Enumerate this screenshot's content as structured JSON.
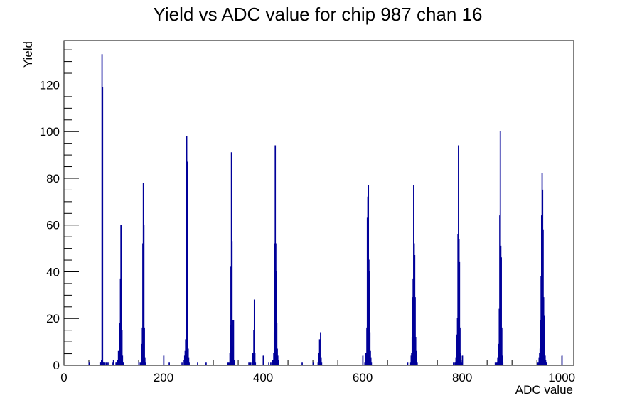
{
  "chart_data": {
    "type": "histogram",
    "title": "Yield vs ADC value for chip 987 chan 16",
    "xlabel": "ADC value",
    "ylabel": "Yield",
    "xlim": [
      0,
      1024
    ],
    "ylim": [
      0,
      139
    ],
    "x_ticks": [
      0,
      200,
      400,
      600,
      800,
      1000
    ],
    "x_tick_labels": [
      "0",
      "200",
      "400",
      "600",
      "800",
      "1000"
    ],
    "y_ticks": [
      0,
      20,
      40,
      60,
      80,
      100,
      120
    ],
    "y_tick_labels": [
      "0",
      "20",
      "40",
      "60",
      "80",
      "100",
      "120"
    ],
    "line_color": "#000099",
    "bin_width": 1,
    "bins": [
      [
        50,
        1
      ],
      [
        72,
        1
      ],
      [
        73,
        1
      ],
      [
        74,
        1
      ],
      [
        75,
        2
      ],
      [
        76,
        133
      ],
      [
        77,
        119
      ],
      [
        78,
        1
      ],
      [
        79,
        1
      ],
      [
        80,
        1
      ],
      [
        84,
        1
      ],
      [
        88,
        1
      ],
      [
        98,
        1
      ],
      [
        99,
        2
      ],
      [
        104,
        1
      ],
      [
        105,
        1
      ],
      [
        107,
        2
      ],
      [
        109,
        6
      ],
      [
        110,
        1
      ],
      [
        111,
        3
      ],
      [
        112,
        18
      ],
      [
        113,
        37
      ],
      [
        114,
        60
      ],
      [
        115,
        38
      ],
      [
        116,
        15
      ],
      [
        117,
        4
      ],
      [
        118,
        1
      ],
      [
        119,
        1
      ],
      [
        150,
        1
      ],
      [
        153,
        1
      ],
      [
        155,
        3
      ],
      [
        156,
        9
      ],
      [
        157,
        16
      ],
      [
        158,
        52
      ],
      [
        159,
        78
      ],
      [
        160,
        60
      ],
      [
        161,
        16
      ],
      [
        162,
        3
      ],
      [
        163,
        1
      ],
      [
        200,
        4
      ],
      [
        211,
        1
      ],
      [
        235,
        1
      ],
      [
        238,
        1
      ],
      [
        241,
        2
      ],
      [
        242,
        4
      ],
      [
        243,
        6
      ],
      [
        244,
        11
      ],
      [
        245,
        37
      ],
      [
        246,
        98
      ],
      [
        247,
        87
      ],
      [
        248,
        33
      ],
      [
        249,
        7
      ],
      [
        250,
        3
      ],
      [
        251,
        1
      ],
      [
        268,
        1
      ],
      [
        285,
        1
      ],
      [
        329,
        1
      ],
      [
        331,
        1
      ],
      [
        333,
        5
      ],
      [
        334,
        17
      ],
      [
        335,
        42
      ],
      [
        336,
        91
      ],
      [
        337,
        53
      ],
      [
        338,
        19
      ],
      [
        339,
        8
      ],
      [
        340,
        19
      ],
      [
        341,
        2
      ],
      [
        342,
        1
      ],
      [
        371,
        1
      ],
      [
        374,
        1
      ],
      [
        377,
        1
      ],
      [
        378,
        5
      ],
      [
        379,
        4
      ],
      [
        380,
        5
      ],
      [
        381,
        15
      ],
      [
        382,
        28
      ],
      [
        383,
        5
      ],
      [
        384,
        1
      ],
      [
        400,
        4
      ],
      [
        411,
        1
      ],
      [
        415,
        1
      ],
      [
        419,
        2
      ],
      [
        421,
        5
      ],
      [
        422,
        14
      ],
      [
        423,
        52
      ],
      [
        424,
        94
      ],
      [
        425,
        52
      ],
      [
        426,
        40
      ],
      [
        427,
        18
      ],
      [
        428,
        7
      ],
      [
        429,
        4
      ],
      [
        430,
        2
      ],
      [
        431,
        1
      ],
      [
        478,
        1
      ],
      [
        500,
        1
      ],
      [
        510,
        1
      ],
      [
        511,
        1
      ],
      [
        512,
        5
      ],
      [
        513,
        11
      ],
      [
        514,
        2
      ],
      [
        515,
        14
      ],
      [
        516,
        3
      ],
      [
        517,
        1
      ],
      [
        600,
        4
      ],
      [
        604,
        1
      ],
      [
        605,
        2
      ],
      [
        606,
        5
      ],
      [
        607,
        4
      ],
      [
        608,
        16
      ],
      [
        609,
        63
      ],
      [
        610,
        72
      ],
      [
        611,
        77
      ],
      [
        612,
        45
      ],
      [
        613,
        40
      ],
      [
        614,
        14
      ],
      [
        615,
        6
      ],
      [
        616,
        3
      ],
      [
        617,
        1
      ],
      [
        690,
        1
      ],
      [
        696,
        1
      ],
      [
        697,
        4
      ],
      [
        698,
        5
      ],
      [
        699,
        12
      ],
      [
        700,
        29
      ],
      [
        701,
        37
      ],
      [
        702,
        77
      ],
      [
        703,
        52
      ],
      [
        704,
        47
      ],
      [
        705,
        29
      ],
      [
        706,
        12
      ],
      [
        707,
        6
      ],
      [
        708,
        3
      ],
      [
        709,
        1
      ],
      [
        782,
        1
      ],
      [
        785,
        1
      ],
      [
        786,
        1
      ],
      [
        787,
        3
      ],
      [
        788,
        4
      ],
      [
        789,
        13
      ],
      [
        790,
        20
      ],
      [
        791,
        56
      ],
      [
        792,
        94
      ],
      [
        793,
        54
      ],
      [
        794,
        44
      ],
      [
        795,
        16
      ],
      [
        796,
        5
      ],
      [
        797,
        2
      ],
      [
        798,
        1
      ],
      [
        800,
        4
      ],
      [
        866,
        1
      ],
      [
        869,
        1
      ],
      [
        870,
        1
      ],
      [
        871,
        3
      ],
      [
        872,
        5
      ],
      [
        873,
        9
      ],
      [
        874,
        24
      ],
      [
        875,
        64
      ],
      [
        876,
        100
      ],
      [
        877,
        51
      ],
      [
        878,
        46
      ],
      [
        879,
        16
      ],
      [
        880,
        4
      ],
      [
        881,
        1
      ],
      [
        951,
        1
      ],
      [
        953,
        1
      ],
      [
        954,
        3
      ],
      [
        955,
        5
      ],
      [
        956,
        7
      ],
      [
        957,
        19
      ],
      [
        958,
        38
      ],
      [
        959,
        64
      ],
      [
        960,
        82
      ],
      [
        961,
        75
      ],
      [
        962,
        58
      ],
      [
        963,
        29
      ],
      [
        964,
        21
      ],
      [
        965,
        9
      ],
      [
        966,
        4
      ],
      [
        967,
        2
      ],
      [
        968,
        1
      ],
      [
        969,
        1
      ],
      [
        1000,
        4
      ]
    ]
  }
}
